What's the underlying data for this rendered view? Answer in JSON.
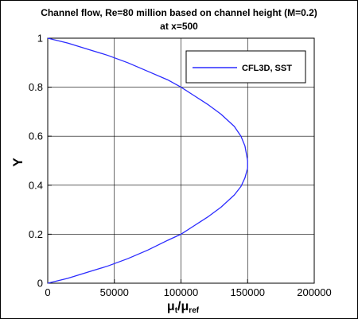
{
  "chart_data": {
    "type": "line",
    "title": "Channel flow, Re=80 million based on channel height (M=0.2)",
    "subtitle": "at x=500",
    "xlabel": "μt/μref",
    "xlabel_main": "μ",
    "xlabel_sub1": "t",
    "xlabel_slash": "/",
    "xlabel_main2": "μ",
    "xlabel_sub2": "ref",
    "ylabel": "Y",
    "xlim": [
      0,
      200000
    ],
    "ylim": [
      0,
      1
    ],
    "x_ticks": [
      0,
      50000,
      100000,
      150000,
      200000
    ],
    "y_ticks": [
      0,
      0.2,
      0.4,
      0.6,
      0.8,
      1
    ],
    "x_tick_labels": [
      "0",
      "50000",
      "100000",
      "150000",
      "200000"
    ],
    "y_tick_labels": [
      "0",
      "0.2",
      "0.4",
      "0.6",
      "0.8",
      "1"
    ],
    "grid": true,
    "legend_position": "top-right",
    "series": [
      {
        "name": "CFL3D, SST",
        "color": "#2b2bff",
        "x": [
          0,
          15000,
          30000,
          45000,
          60000,
          75000,
          90000,
          100000,
          110000,
          120000,
          130000,
          140000,
          145000,
          148000,
          150000,
          150000,
          148000,
          145000,
          140000,
          130000,
          120000,
          110000,
          100000,
          90000,
          75000,
          60000,
          45000,
          30000,
          15000,
          0
        ],
        "y": [
          0,
          0.02,
          0.045,
          0.07,
          0.1,
          0.135,
          0.175,
          0.2,
          0.235,
          0.27,
          0.31,
          0.36,
          0.395,
          0.43,
          0.47,
          0.5,
          0.56,
          0.6,
          0.64,
          0.69,
          0.73,
          0.765,
          0.8,
          0.83,
          0.865,
          0.9,
          0.93,
          0.955,
          0.98,
          1
        ]
      }
    ]
  }
}
